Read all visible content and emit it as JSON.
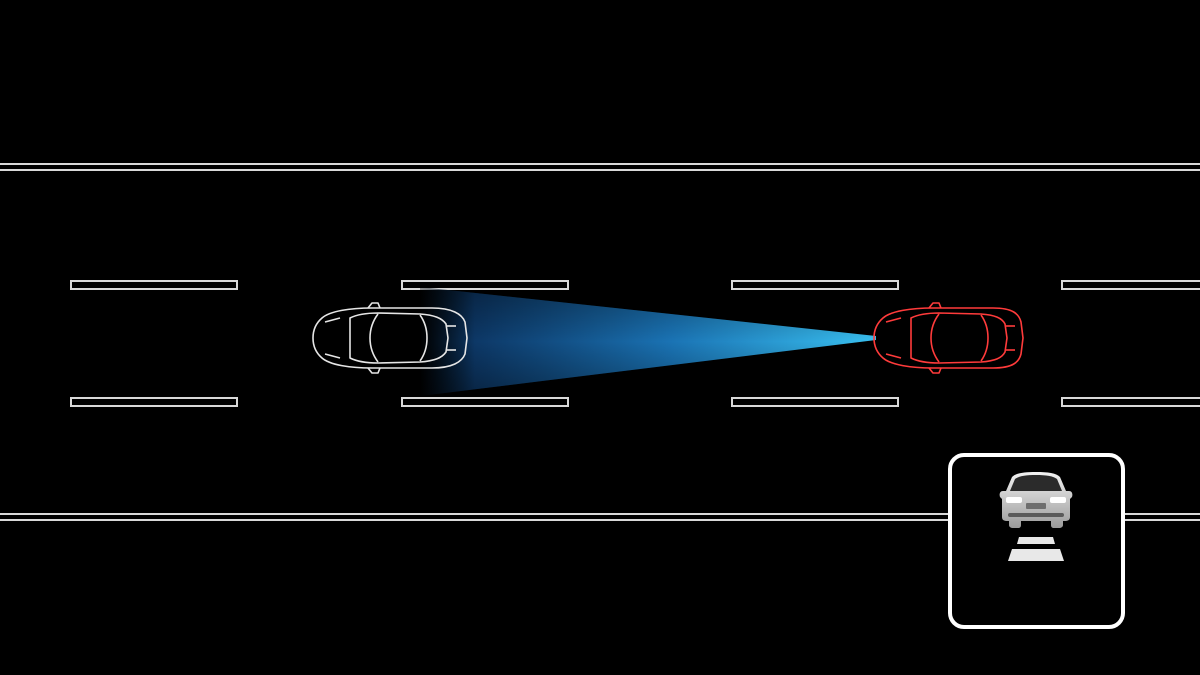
{
  "scene": {
    "description_label": "",
    "colors": {
      "background": "#000000",
      "lane_lines": "#d9d9d9",
      "own_vehicle_outline": "#e6e6e6",
      "target_vehicle_outline": "#ff3b3b",
      "sensor_beam": "#2aa6e8",
      "indicator_border": "#ffffff"
    },
    "icons": {
      "own_vehicle": "own-vehicle-icon",
      "target_vehicle": "target-vehicle-icon",
      "sensor_beam": "radar-beam-icon",
      "indicator": "forward-collision-warning-icon"
    }
  }
}
